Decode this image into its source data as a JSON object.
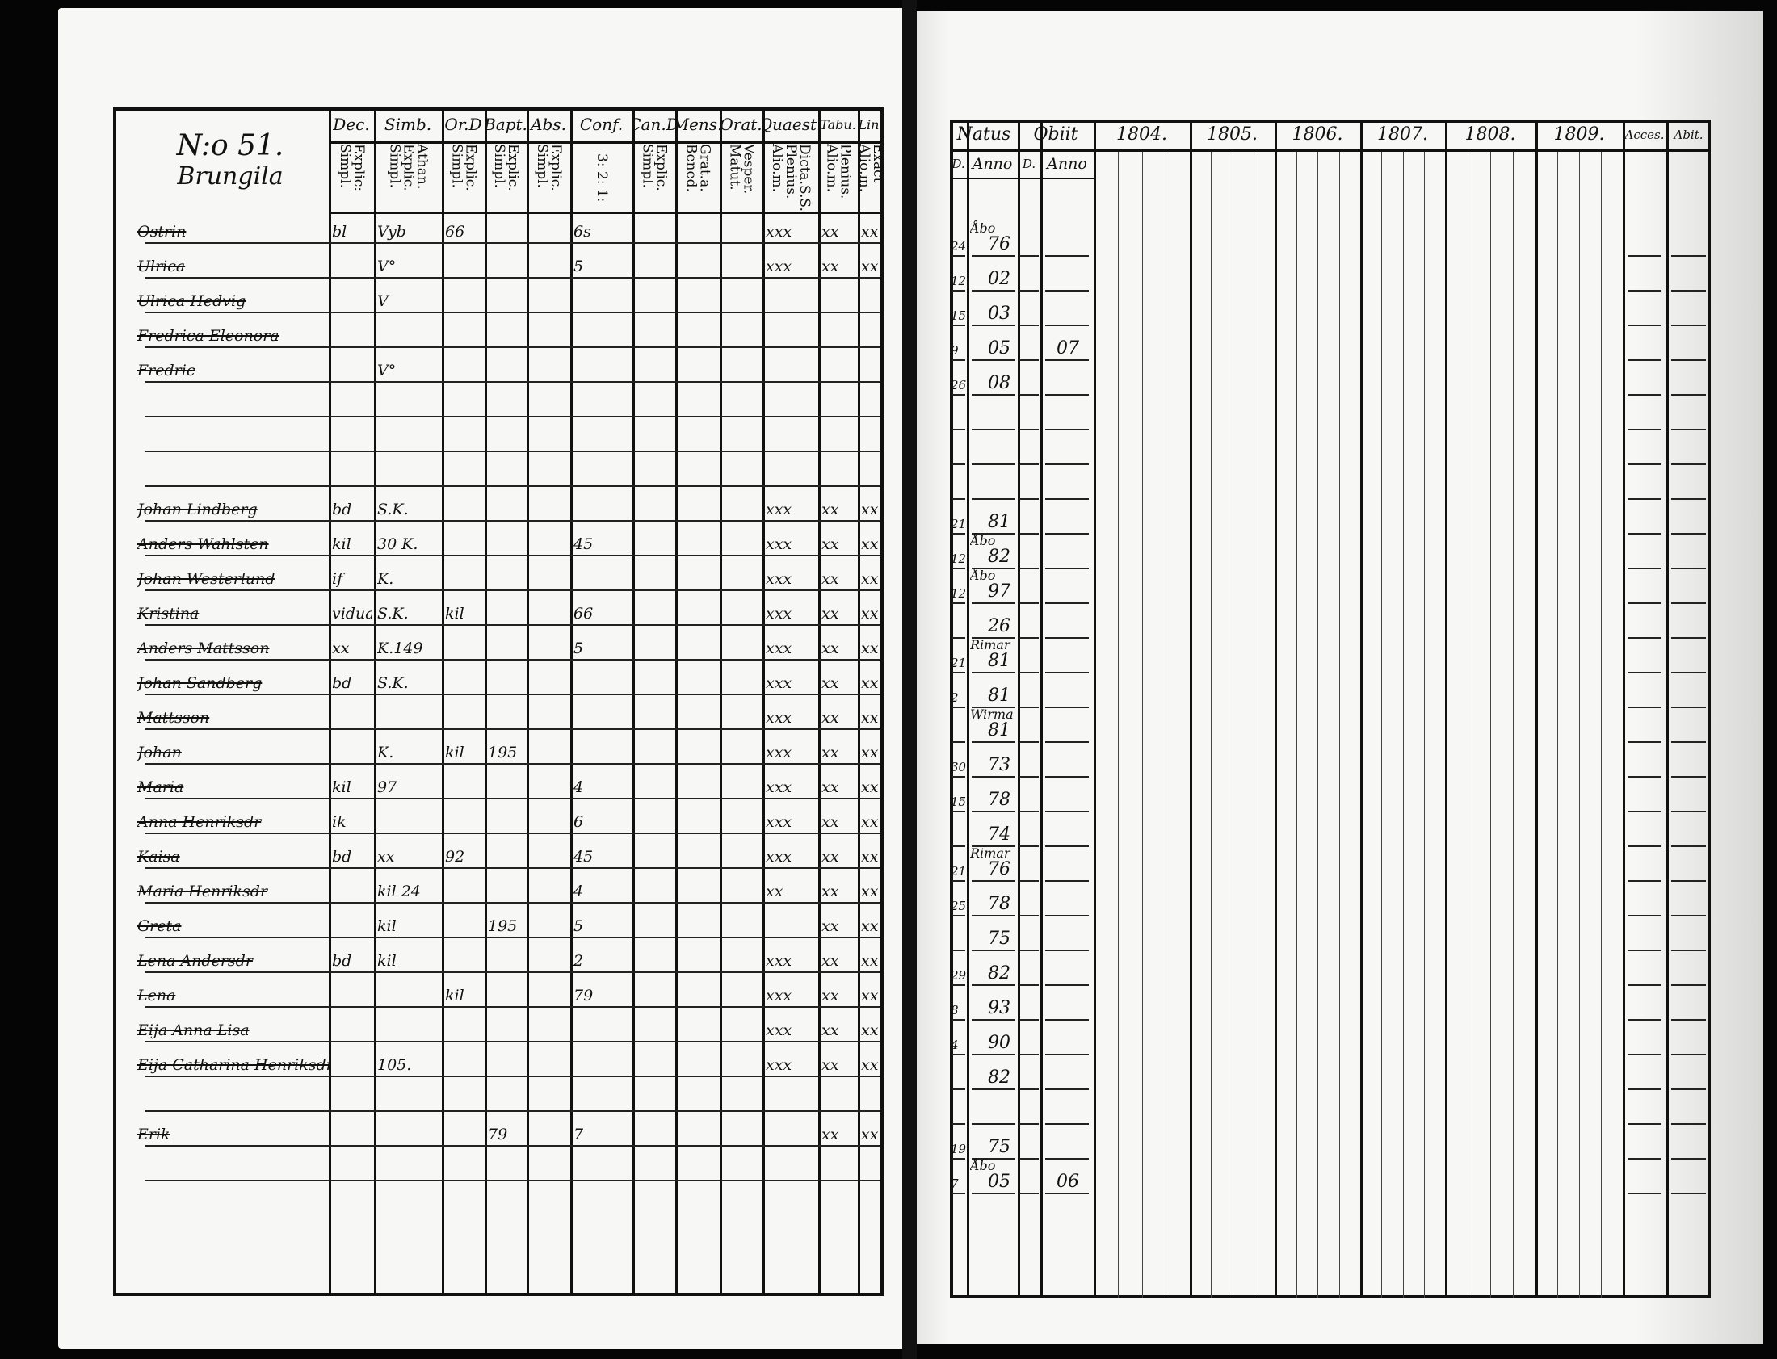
{
  "left_page": {
    "house_number": "N:o 51.",
    "farm_name": "Brungila",
    "columns": [
      {
        "head": "",
        "sub": ""
      },
      {
        "head": "Dec.",
        "sub": "Explic: Simpl."
      },
      {
        "head": "Simb.",
        "sub": "Athan. Explic. Simpl."
      },
      {
        "head": "Or.D",
        "sub": "Explic. Simpl."
      },
      {
        "head": "Bapt.",
        "sub": "Explic. Simpl."
      },
      {
        "head": "Abs.",
        "sub": "Explic. Simpl."
      },
      {
        "head": "Conf.",
        "sub": "3: 2: 1:"
      },
      {
        "head": "Can.D",
        "sub": "Explic. Simpl."
      },
      {
        "head": "Mens.",
        "sub": "Grat.a. Bened."
      },
      {
        "head": "Orat.",
        "sub": "Vesper. Matut."
      },
      {
        "head": "Quaest.",
        "sub": "Dicta.S.S. Plenius. Alio.m."
      },
      {
        "head": "Tabu.",
        "sub": "Plenius. Alio.m."
      },
      {
        "head": "Lin.",
        "sub": "Exact Alio.m."
      }
    ],
    "rows": [
      {
        "name": "Ostrin",
        "dec": "bl",
        "simb": "Vyb",
        "ord": "66",
        "conf": "6s",
        "quaest": "xxx",
        "tabu": "xx",
        "lin": "xx"
      },
      {
        "name": "Ulrica",
        "simb": "V°",
        "conf": "5",
        "quaest": "xxx",
        "tabu": "xx",
        "lin": "xx"
      },
      {
        "name": "Ulrica Hedvig",
        "simb": "V"
      },
      {
        "name": "Fredrica Eleonora"
      },
      {
        "name": "Fredric",
        "simb": "V°"
      },
      {},
      {},
      {},
      {
        "name": "Johan Lindberg",
        "dec": "bd",
        "simb": "S.K.",
        "quaest": "xxx",
        "tabu": "xx",
        "lin": "xx"
      },
      {
        "name": "Anders Wahlsten",
        "dec": "kil",
        "simb": "30 K.",
        "conf": "45",
        "quaest": "xxx",
        "tabu": "xx",
        "lin": "xx"
      },
      {
        "name": "Johan Westerlund",
        "dec": "if",
        "simb": "K.",
        "quaest": "xxx",
        "tabu": "xx",
        "lin": "xx"
      },
      {
        "name": "Kristina",
        "dec": "vidua",
        "simb": "S.K.",
        "ord": "kil",
        "conf": "66",
        "quaest": "xxx",
        "tabu": "xx",
        "lin": "xx"
      },
      {
        "name": "Anders Mattsson",
        "dec": "xx",
        "simb": "K.149",
        "conf": "5",
        "quaest": "xxx",
        "tabu": "xx",
        "lin": "xx"
      },
      {
        "name": "Johan Sandberg",
        "dec": "bd",
        "simb": "S.K.",
        "quaest": "xxx",
        "tabu": "xx",
        "lin": "xx"
      },
      {
        "name": "Mattsson",
        "quaest": "xxx",
        "tabu": "xx",
        "lin": "xx"
      },
      {
        "name": "Johan",
        "simb": "K.",
        "ord": "kil",
        "bapt": "195",
        "quaest": "xxx",
        "tabu": "xx",
        "lin": "xx"
      },
      {
        "name": "Maria",
        "dec": "kil",
        "simb": "97",
        "conf": "4",
        "quaest": "xxx",
        "tabu": "xx",
        "lin": "xx"
      },
      {
        "name": "Anna Henriksdr",
        "dec": "ik",
        "conf": "6",
        "quaest": "xxx",
        "tabu": "xx",
        "lin": "xx"
      },
      {
        "name": "Kaisa",
        "dec": "bd",
        "simb": "xx",
        "ord": "92",
        "conf": "45",
        "quaest": "xxx",
        "tabu": "xx",
        "lin": "xx"
      },
      {
        "name": "Maria Henriksdr",
        "simb": "kil 24",
        "conf": "4",
        "quaest": "xx",
        "tabu": "xx",
        "lin": "xx"
      },
      {
        "name": "Greta",
        "simb": "kil",
        "bapt": "195",
        "conf": "5",
        "tabu": "xx",
        "lin": "xx"
      },
      {
        "name": "Lena Andersdr",
        "dec": "bd",
        "simb": "kil",
        "conf": "2",
        "quaest": "xxx",
        "tabu": "xx",
        "lin": "xx"
      },
      {
        "name": "Lena",
        "ord": "kil",
        "conf": "79",
        "quaest": "xxx",
        "tabu": "xx",
        "lin": "xx"
      },
      {
        "name": "Eija Anna Lisa",
        "quaest": "xxx",
        "tabu": "xx",
        "lin": "xx"
      },
      {
        "name": "Eija Catharina Henriksdr",
        "simb": "105.",
        "quaest": "xxx",
        "tabu": "xx",
        "lin": "xx"
      },
      {},
      {
        "name": "Erik",
        "bapt": "79",
        "conf": "7",
        "tabu": "xx",
        "lin": "xx"
      },
      {}
    ]
  },
  "right_page": {
    "group_headers": [
      "Natus",
      "Obiit",
      "1804.",
      "1805.",
      "1806.",
      "1807.",
      "1808.",
      "1809.",
      "Acces.",
      "Abit."
    ],
    "sub_headers": [
      "D.",
      "Anno",
      "D.",
      "Anno"
    ],
    "rows": [
      {
        "place": "Åbo",
        "d": "24",
        "anno": "76"
      },
      {
        "d": "12",
        "anno": "02"
      },
      {
        "d": "15",
        "anno": "03"
      },
      {
        "d": "9",
        "anno": "05",
        "obiit_anno": "07"
      },
      {
        "d": "26",
        "anno": "08"
      },
      {},
      {},
      {},
      {
        "d": "21",
        "anno": "81"
      },
      {
        "place": "Åbo",
        "d": "12",
        "anno": "82"
      },
      {
        "place": "Åbo",
        "d": "12",
        "anno": "97"
      },
      {
        "d": "",
        "anno": "26"
      },
      {
        "place": "Rimar",
        "d": "21",
        "anno": "81"
      },
      {
        "d": "2",
        "anno": "81"
      },
      {
        "place": "Wirma",
        "anno": "81"
      },
      {
        "d": "30",
        "anno": "73"
      },
      {
        "d": "15",
        "anno": "78"
      },
      {
        "anno": "74"
      },
      {
        "place": "Rimar",
        "d": "21",
        "anno": "76"
      },
      {
        "d": "25",
        "anno": "78"
      },
      {
        "anno": "75"
      },
      {
        "d": "29",
        "anno": "82"
      },
      {
        "d": "8",
        "anno": "93"
      },
      {
        "d": "4",
        "anno": "90"
      },
      {
        "anno": "82"
      },
      {},
      {
        "d": "19",
        "anno": "75"
      },
      {
        "place": "Åbo",
        "d": "7",
        "anno": "05",
        "obiit_anno": "06"
      }
    ]
  },
  "colors": {
    "ink": "#111111",
    "paper": "#f7f7f5",
    "background": "#050505"
  }
}
